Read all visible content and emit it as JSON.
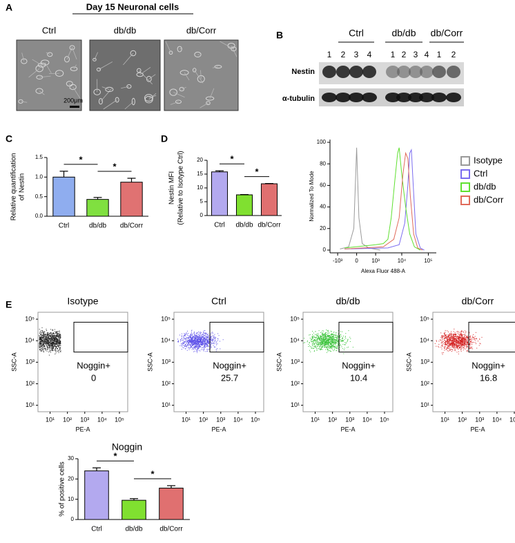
{
  "panel_labels": [
    "A",
    "B",
    "C",
    "D",
    "E"
  ],
  "panel_a": {
    "title": "Day 15 Neuronal cells",
    "images": [
      "Ctrl",
      "db/db",
      "db/Corr"
    ],
    "scale_bar": "200μm"
  },
  "panel_b": {
    "groups": [
      {
        "name": "Ctrl",
        "lanes": [
          "1",
          "2",
          "3",
          "4"
        ]
      },
      {
        "name": "db/db",
        "lanes": [
          "1",
          "2",
          "3",
          "4"
        ]
      },
      {
        "name": "db/Corr",
        "lanes": [
          "1",
          "2"
        ]
      }
    ],
    "rows": [
      "Nestin",
      "α-tubulin"
    ]
  },
  "panel_e": {
    "x_label": "PE-A",
    "y_label": "SSC-A",
    "xlim": [
      2,
      300000
    ],
    "ylim": [
      5,
      210000
    ],
    "log_scale": true,
    "ticks": [
      {
        "value": 10,
        "label": "10¹"
      },
      {
        "value": 100,
        "label": "10²"
      },
      {
        "value": 1000,
        "label": "10³"
      },
      {
        "value": 10000,
        "label": "10⁴"
      },
      {
        "value": 100000,
        "label": "10⁵"
      }
    ],
    "plots": [
      {
        "title": "Isotype",
        "gate": "Noggin+",
        "value": 0,
        "color": "#222222"
      },
      {
        "title": "Ctrl",
        "gate": "Noggin+",
        "value": 25.7,
        "color": "#5a4ee8"
      },
      {
        "title": "db/db",
        "gate": "Noggin+",
        "value": 10.4,
        "color": "#3cc43c"
      },
      {
        "title": "db/Corr",
        "gate": "Noggin+",
        "value": 16.8,
        "color": "#d42020"
      }
    ]
  },
  "chart_data": [
    {
      "type": "bar",
      "ylabel": [
        "Relative quantification",
        "of Nestin"
      ],
      "categories": [
        "Ctrl",
        "db/db",
        "db/Corr"
      ],
      "values": [
        1.0,
        0.43,
        0.87
      ],
      "errors": [
        0.15,
        0.05,
        0.1
      ],
      "colors": [
        "#8fadef",
        "#80e040",
        "#e07272"
      ],
      "ylim": [
        0,
        1.5
      ],
      "yticks": [
        {
          "value": 0,
          "label": "0.0"
        },
        {
          "value": 0.5,
          "label": "0.5"
        },
        {
          "value": 1,
          "label": "1.0"
        },
        {
          "value": 1.5,
          "label": "1.5"
        }
      ],
      "annotations": [
        "*",
        "*"
      ]
    },
    {
      "type": "bar",
      "ylabel": [
        "Nestin MFI",
        "(Relative to Isotype Ctrl)"
      ],
      "categories": [
        "Ctrl",
        "db/db",
        "db/Corr"
      ],
      "values": [
        15.8,
        7.5,
        11.5
      ],
      "errors": [
        0.4,
        0.1,
        0.1
      ],
      "colors": [
        "#b3a9ef",
        "#80e030",
        "#e07070"
      ],
      "ylim": [
        0,
        20
      ],
      "yticks": [
        0,
        5,
        10,
        15,
        20
      ],
      "annotations": [
        "*",
        "*"
      ]
    },
    {
      "type": "line",
      "xlabel": "Alexa Fluor 488-A",
      "ylabel": "Normalized To Mode",
      "xscale": "biexponential",
      "xlim": [
        -2000,
        200000
      ],
      "xticks": [
        {
          "value": -1000,
          "label": "-10³"
        },
        0,
        {
          "value": 1000,
          "label": "10³"
        },
        {
          "value": 10000,
          "label": "10⁴"
        },
        {
          "value": 100000,
          "label": "10⁵"
        }
      ],
      "ylim": [
        0,
        100
      ],
      "yticks": [
        0,
        20,
        40,
        60,
        80,
        100
      ],
      "series": [
        {
          "name": "Isotype",
          "color": "#999999",
          "x": [
            -800,
            -300,
            -100,
            0,
            80,
            200,
            500,
            1500
          ],
          "values": [
            1,
            3,
            20,
            95,
            30,
            6,
            2,
            0
          ]
        },
        {
          "name": "Ctrl",
          "color": "#7b6cf0",
          "x": [
            -500,
            3000,
            8000,
            13000,
            17000,
            20000,
            23000,
            27000,
            34000,
            50000,
            70000
          ],
          "values": [
            1,
            2,
            5,
            25,
            60,
            90,
            93,
            60,
            15,
            2,
            0
          ]
        },
        {
          "name": "db/db",
          "color": "#5fe030",
          "x": [
            -500,
            1000,
            2000,
            3000,
            4000,
            5500,
            7000,
            8000,
            10000,
            14000,
            20000,
            30000,
            50000
          ],
          "values": [
            2,
            5,
            6,
            10,
            30,
            65,
            90,
            95,
            70,
            40,
            15,
            3,
            0
          ]
        },
        {
          "name": "db/Corr",
          "color": "#e06a5a",
          "x": [
            -500,
            2000,
            5000,
            8000,
            11000,
            14000,
            17000,
            21000,
            28000,
            40000,
            60000
          ],
          "values": [
            1,
            3,
            10,
            30,
            70,
            90,
            85,
            50,
            15,
            2,
            0
          ]
        }
      ]
    },
    {
      "type": "bar",
      "title": "Noggin",
      "ylabel": [
        "% of positive cells"
      ],
      "categories": [
        "Ctrl",
        "db/db",
        "db/Corr"
      ],
      "values": [
        24,
        9.5,
        15.5
      ],
      "errors": [
        1.5,
        0.8,
        1.2
      ],
      "colors": [
        "#b3a9ef",
        "#80e030",
        "#e07070"
      ],
      "ylim": [
        0,
        30
      ],
      "yticks": [
        0,
        10,
        20,
        30
      ],
      "annotations": [
        "*",
        "*"
      ]
    }
  ]
}
